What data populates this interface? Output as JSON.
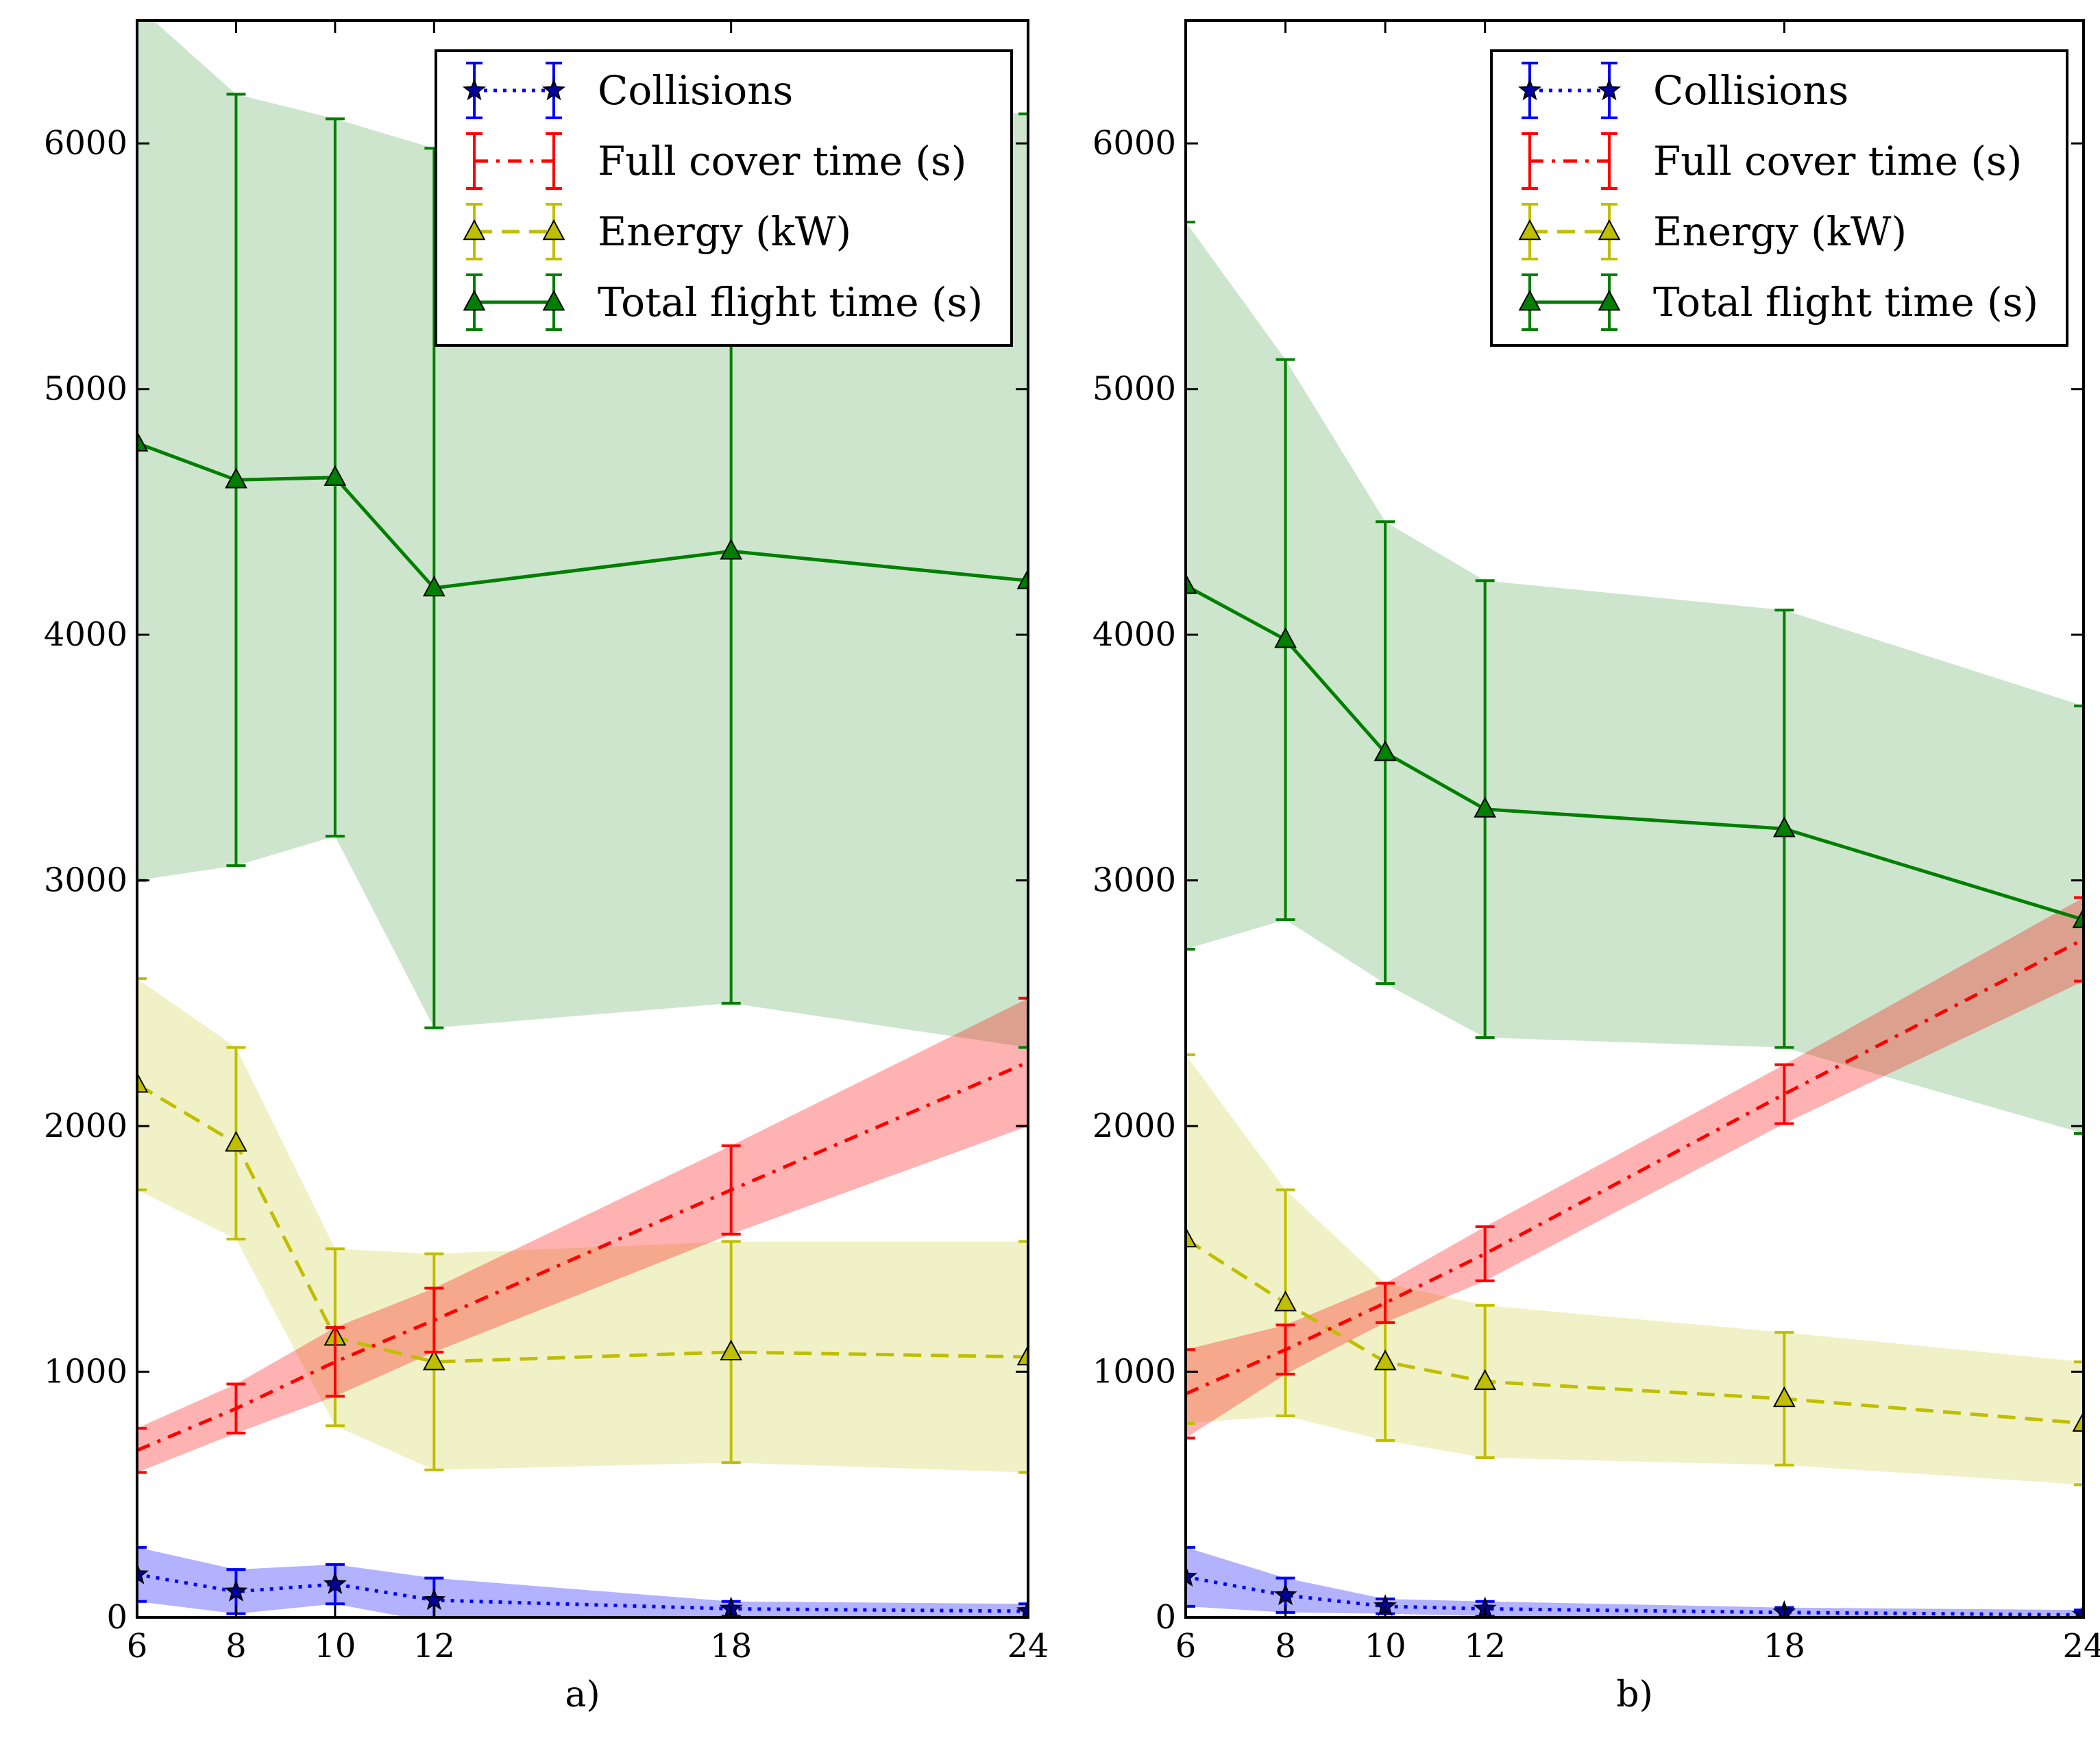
{
  "chart_data": [
    {
      "type": "line",
      "caption": "a)",
      "x": [
        6,
        8,
        10,
        12,
        18,
        24
      ],
      "xlim": [
        6,
        24
      ],
      "ylim": [
        0,
        6500
      ],
      "xticks": [
        6,
        8,
        10,
        12,
        18,
        24
      ],
      "yticks": [
        0,
        1000,
        2000,
        3000,
        4000,
        5000,
        6000
      ],
      "legend_position": "top-right",
      "series": [
        {
          "name": "Collisions",
          "color": "#0000ff",
          "marker": "star",
          "linestyle": "dotted",
          "values": [
            175,
            105,
            135,
            70,
            35,
            25
          ],
          "err": [
            110,
            90,
            80,
            90,
            30,
            30
          ]
        },
        {
          "name": "Full cover time (s)",
          "color": "#ff0000",
          "marker": "none",
          "linestyle": "dashdot",
          "values": [
            680,
            850,
            1040,
            1210,
            1740,
            2260
          ],
          "err": [
            90,
            100,
            140,
            130,
            180,
            260
          ]
        },
        {
          "name": "Energy (kW)",
          "color": "#bfbf00",
          "marker": "triangle",
          "linestyle": "dashed",
          "values": [
            2170,
            1930,
            1140,
            1040,
            1080,
            1060
          ],
          "err": [
            430,
            390,
            360,
            440,
            450,
            470
          ]
        },
        {
          "name": "Total flight time (s)",
          "color": "#007f00",
          "marker": "triangle",
          "linestyle": "solid",
          "values": [
            4780,
            4630,
            4640,
            4190,
            4340,
            4220
          ],
          "err": [
            1780,
            1570,
            1460,
            1790,
            1840,
            1900
          ]
        }
      ]
    },
    {
      "type": "line",
      "caption": "b)",
      "x": [
        6,
        8,
        10,
        12,
        18,
        24
      ],
      "xlim": [
        6,
        24
      ],
      "ylim": [
        0,
        6500
      ],
      "xticks": [
        6,
        8,
        10,
        12,
        18,
        24
      ],
      "yticks": [
        0,
        1000,
        2000,
        3000,
        4000,
        5000,
        6000
      ],
      "legend_position": "top-right",
      "series": [
        {
          "name": "Collisions",
          "color": "#0000ff",
          "marker": "star",
          "linestyle": "dotted",
          "values": [
            165,
            90,
            45,
            35,
            20,
            10
          ],
          "err": [
            120,
            70,
            30,
            30,
            20,
            20
          ]
        },
        {
          "name": "Full cover time (s)",
          "color": "#ff0000",
          "marker": "none",
          "linestyle": "dashdot",
          "values": [
            910,
            1090,
            1280,
            1480,
            2130,
            2760
          ],
          "err": [
            180,
            100,
            80,
            110,
            120,
            170
          ]
        },
        {
          "name": "Energy (kW)",
          "color": "#bfbf00",
          "marker": "triangle",
          "linestyle": "dashed",
          "values": [
            1540,
            1280,
            1040,
            960,
            890,
            790
          ],
          "err": [
            750,
            460,
            320,
            310,
            270,
            250
          ]
        },
        {
          "name": "Total flight time (s)",
          "color": "#007f00",
          "marker": "triangle",
          "linestyle": "solid",
          "values": [
            4200,
            3980,
            3520,
            3290,
            3210,
            2840
          ],
          "err": [
            1480,
            1140,
            940,
            930,
            890,
            870
          ]
        }
      ]
    }
  ]
}
